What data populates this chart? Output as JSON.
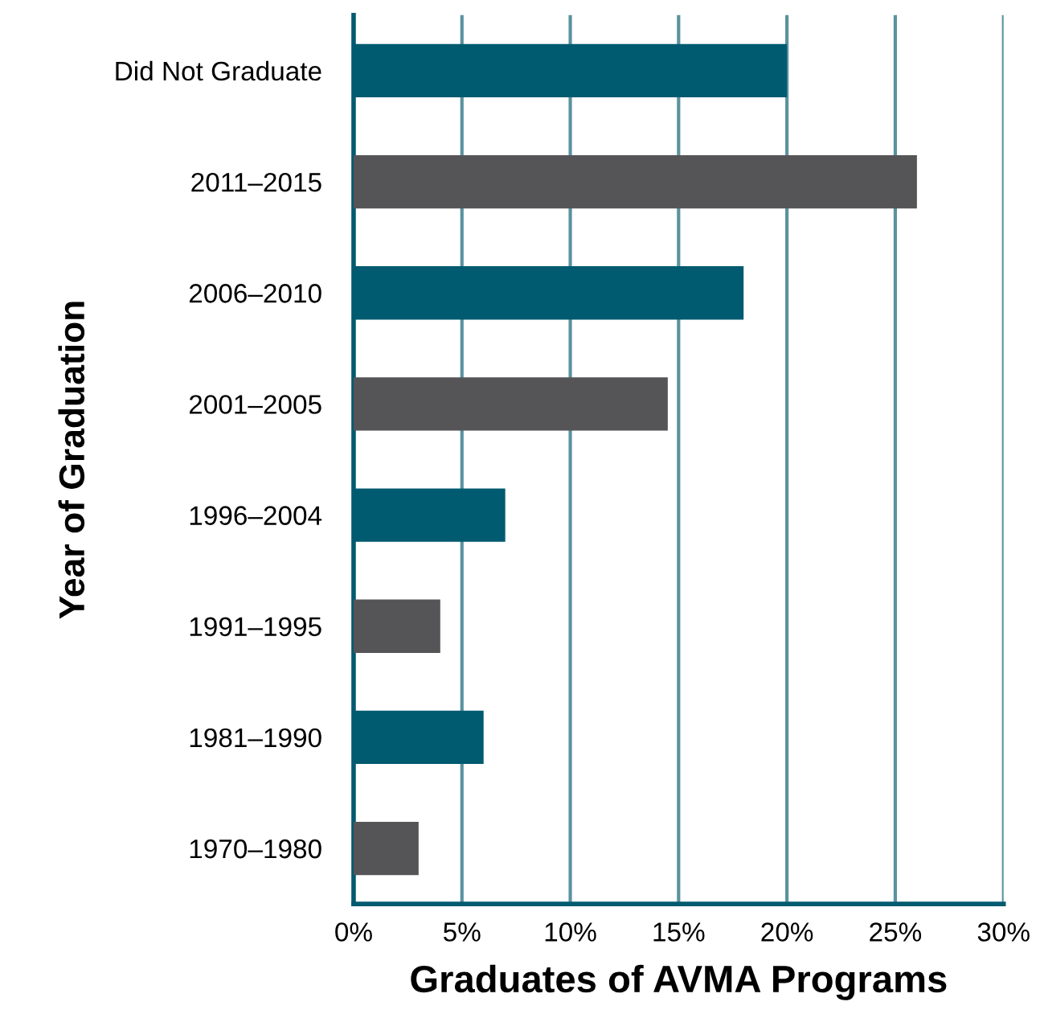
{
  "chart_data": {
    "type": "bar",
    "orientation": "horizontal",
    "categories": [
      "Did Not Graduate",
      "2011–2015",
      "2006–2010",
      "2001–2005",
      "1996–2004",
      "1991–1995",
      "1981–1990",
      "1970–1980"
    ],
    "values": [
      20,
      26,
      18,
      14.5,
      7,
      4,
      6,
      3
    ],
    "colors": [
      "#005a70",
      "#555557",
      "#005a70",
      "#555557",
      "#005a70",
      "#555557",
      "#005a70",
      "#555557"
    ],
    "xlim": [
      0,
      30
    ],
    "xticks": [
      {
        "value": 0,
        "label": "0%"
      },
      {
        "value": 5,
        "label": "5%"
      },
      {
        "value": 10,
        "label": "10%"
      },
      {
        "value": 15,
        "label": "15%"
      },
      {
        "value": 20,
        "label": "20%"
      },
      {
        "value": 25,
        "label": "25%"
      },
      {
        "value": 30,
        "label": "30%"
      }
    ],
    "xlabel": "Graduates of AVMA Programs",
    "ylabel": "Year of Graduation",
    "grid": "x"
  }
}
